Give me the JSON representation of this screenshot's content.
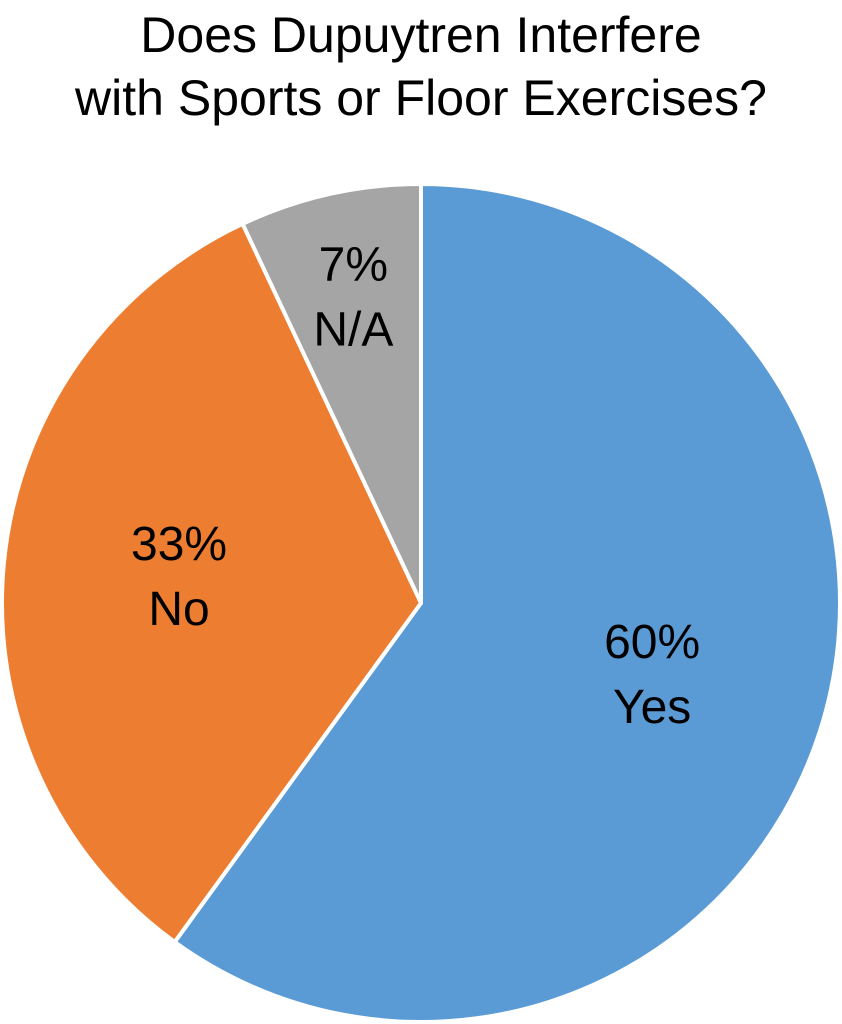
{
  "chart_data": {
    "type": "pie",
    "title_lines": [
      "Does Dupuytren Interfere",
      "with Sports or Floor Exercises?"
    ],
    "slices": [
      {
        "label": "Yes",
        "value": 60,
        "value_label": "60%",
        "color": "#5B9BD5"
      },
      {
        "label": "No",
        "value": 33,
        "value_label": "33%",
        "color": "#ED7D31"
      },
      {
        "label": "N/A",
        "value": 7,
        "value_label": "7%",
        "color": "#A5A5A5"
      }
    ],
    "start": "12 o'clock",
    "direction": "clockwise",
    "slice_border_color": "#FFFFFF",
    "legend": "none"
  }
}
